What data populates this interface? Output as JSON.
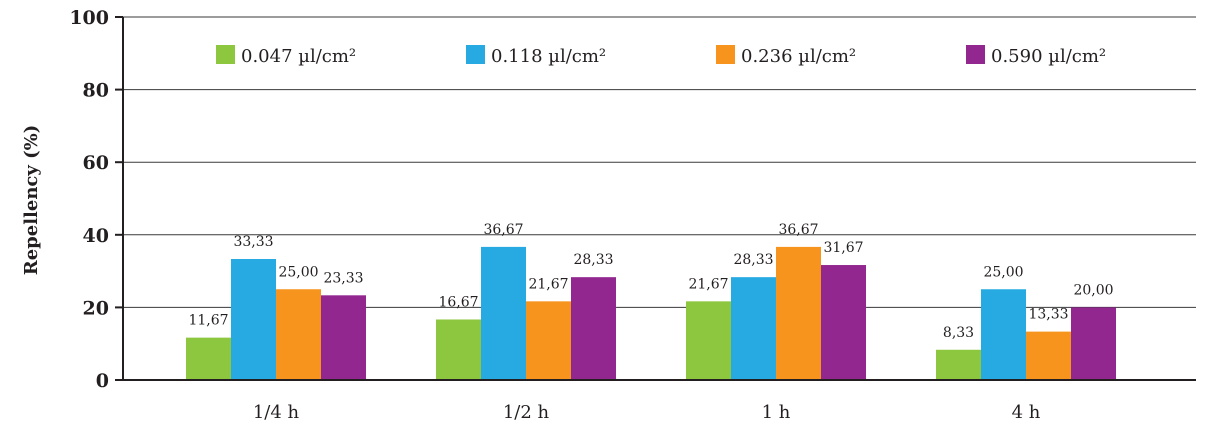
{
  "chart_data": {
    "type": "bar",
    "title": "",
    "xlabel": "",
    "ylabel": "Repellency (%)",
    "ylim": [
      0,
      100
    ],
    "yticks": [
      "0",
      "20",
      "40",
      "60",
      "80",
      "100"
    ],
    "grid": true,
    "legend_position": "top",
    "categories": [
      "1/4 h",
      "1/2 h",
      "1 h",
      "4 h"
    ],
    "series": [
      {
        "name": "0.047 µl/cm²",
        "color": "#8dc63f",
        "values": [
          11.67,
          16.67,
          21.67,
          8.33
        ],
        "labels": [
          "11,67",
          "16,67",
          "21,67",
          "8,33"
        ]
      },
      {
        "name": "0.118 µl/cm²",
        "color": "#27aae1",
        "values": [
          33.33,
          36.67,
          28.33,
          25.0
        ],
        "labels": [
          "33,33",
          "36,67",
          "28,33",
          "25,00"
        ]
      },
      {
        "name": "0.236 µl/cm²",
        "color": "#f7941d",
        "values": [
          25.0,
          21.67,
          36.67,
          13.33
        ],
        "labels": [
          "25,00",
          "21,67",
          "36,67",
          "13,33"
        ]
      },
      {
        "name": "0.590 µl/cm²",
        "color": "#92278f",
        "values": [
          23.33,
          28.33,
          31.67,
          20.0
        ],
        "labels": [
          "23,33",
          "28,33",
          "31,67",
          "20,00"
        ]
      }
    ]
  }
}
